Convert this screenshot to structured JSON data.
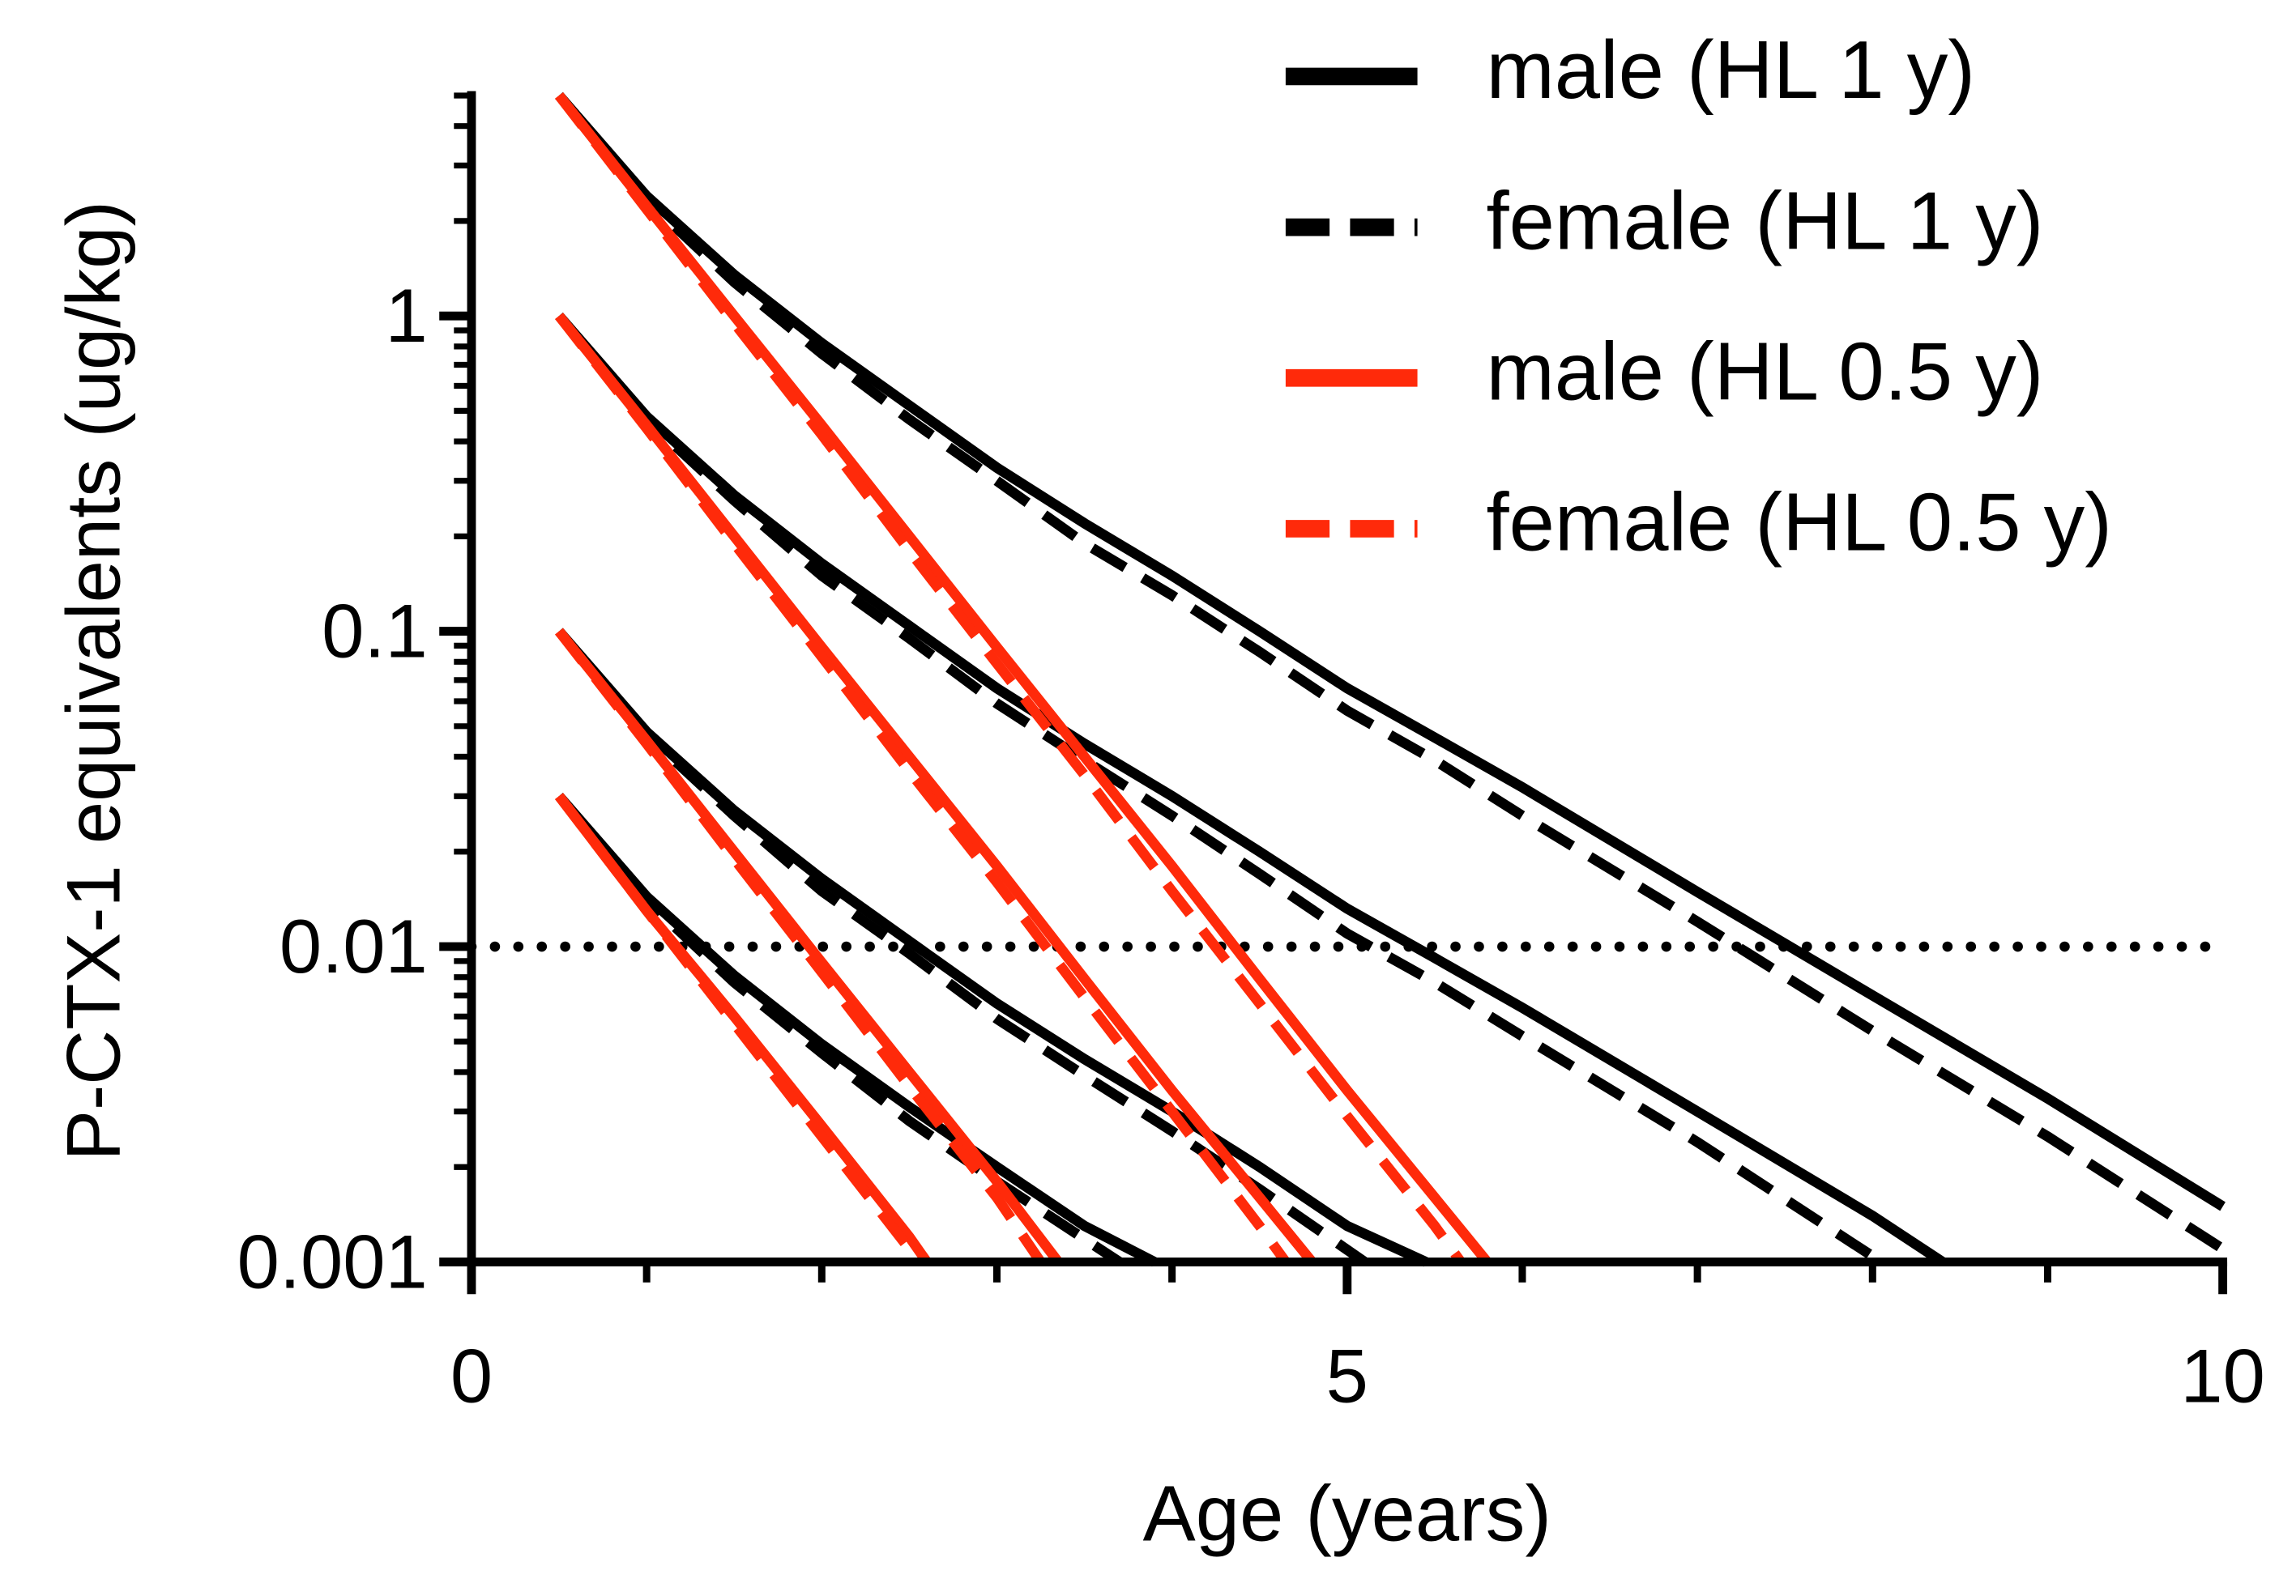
{
  "chart_data": {
    "type": "line",
    "xlabel": "Age (years)",
    "ylabel": "P-CTX-1 equivalents (ug/kg)",
    "xlim": [
      0,
      10
    ],
    "xticks": [
      0,
      5,
      10
    ],
    "xminorticks": [
      1,
      2,
      3,
      4,
      6,
      7,
      8,
      9
    ],
    "ylim": [
      0.001,
      5
    ],
    "yticks": [
      0.001,
      0.01,
      0.1,
      1
    ],
    "yminorticks": [
      0.002,
      0.003,
      0.004,
      0.005,
      0.006,
      0.007,
      0.008,
      0.009,
      0.02,
      0.03,
      0.04,
      0.05,
      0.06,
      0.07,
      0.08,
      0.09,
      0.2,
      0.3,
      0.4,
      0.5,
      0.6,
      0.7,
      0.8,
      0.9,
      2,
      3,
      4,
      5
    ],
    "log_y": true,
    "hline": 0.01,
    "legend": "top-right",
    "series": [
      {
        "name": "male (HL 1 y)",
        "color": "#000000",
        "dashed": false,
        "curves": [
          {
            "x": [
              0.5,
              1,
              1.5,
              2,
              2.5,
              3,
              3.5,
              4,
              4.5,
              5,
              5.5,
              6,
              7,
              8,
              9,
              10
            ],
            "values": [
              5,
              2.4,
              1.35,
              0.82,
              0.52,
              0.33,
              0.22,
              0.15,
              0.1,
              0.066,
              0.046,
              0.032,
              0.0149,
              0.007,
              0.0033,
              0.0015
            ]
          },
          {
            "x": [
              0.5,
              1,
              1.5,
              2,
              2.5,
              3,
              3.5,
              4,
              4.5,
              5,
              5.5,
              6,
              7,
              8,
              8.4
            ],
            "values": [
              1,
              0.48,
              0.27,
              0.164,
              0.104,
              0.066,
              0.044,
              0.03,
              0.02,
              0.0132,
              0.0092,
              0.0064,
              0.003,
              0.0014,
              0.001
            ]
          },
          {
            "x": [
              0.5,
              1,
              1.5,
              2,
              2.5,
              3,
              3.5,
              4,
              4.5,
              5,
              5.45
            ],
            "values": [
              0.1,
              0.048,
              0.027,
              0.0164,
              0.0104,
              0.0066,
              0.0044,
              0.003,
              0.002,
              0.0013,
              0.001
            ]
          },
          {
            "x": [
              0.5,
              1,
              1.5,
              2,
              2.5,
              3,
              3.5,
              3.9
            ],
            "values": [
              0.03,
              0.0144,
              0.0081,
              0.0049,
              0.0031,
              0.002,
              0.0013,
              0.001
            ]
          }
        ]
      },
      {
        "name": "female (HL 1 y)",
        "color": "#000000",
        "dashed": true,
        "curves": [
          {
            "x": [
              0.5,
              1,
              1.5,
              2,
              2.5,
              3,
              3.5,
              4,
              4.5,
              5,
              5.5,
              6,
              7,
              8,
              9,
              10
            ],
            "values": [
              5,
              2.33,
              1.28,
              0.76,
              0.47,
              0.3,
              0.19,
              0.13,
              0.086,
              0.056,
              0.039,
              0.026,
              0.012,
              0.0054,
              0.0025,
              0.0011
            ]
          },
          {
            "x": [
              0.5,
              1,
              1.5,
              2,
              2.5,
              3,
              3.5,
              4,
              4.5,
              5,
              5.5,
              6,
              7,
              8.05
            ],
            "values": [
              1,
              0.47,
              0.26,
              0.15,
              0.095,
              0.059,
              0.039,
              0.026,
              0.017,
              0.011,
              0.0077,
              0.0052,
              0.0024,
              0.001
            ]
          },
          {
            "x": [
              0.5,
              1,
              1.5,
              2,
              2.5,
              3,
              3.5,
              4,
              4.5,
              5.1
            ],
            "values": [
              0.1,
              0.047,
              0.026,
              0.015,
              0.0095,
              0.0059,
              0.0039,
              0.0026,
              0.0017,
              0.001
            ]
          },
          {
            "x": [
              0.5,
              1,
              1.5,
              2,
              2.5,
              3,
              3.7
            ],
            "values": [
              0.03,
              0.014,
              0.0077,
              0.0046,
              0.0028,
              0.0018,
              0.001
            ]
          }
        ]
      },
      {
        "name": "male (HL 0.5 y)",
        "color": "#ff2a0a",
        "dashed": false,
        "curves": [
          {
            "x": [
              0.5,
              1,
              1.5,
              2,
              2.5,
              3,
              3.5,
              4,
              4.5,
              5,
              5.5,
              5.8
            ],
            "values": [
              5,
              2.23,
              1,
              0.45,
              0.2,
              0.089,
              0.04,
              0.018,
              0.0079,
              0.0035,
              0.0016,
              0.001
            ]
          },
          {
            "x": [
              0.5,
              1,
              1.5,
              2,
              2.5,
              3,
              3.5,
              4,
              4.5,
              4.8
            ],
            "values": [
              1,
              0.45,
              0.2,
              0.089,
              0.04,
              0.018,
              0.0079,
              0.0035,
              0.0016,
              0.001
            ]
          },
          {
            "x": [
              0.5,
              1,
              1.5,
              2,
              2.5,
              3,
              3.35
            ],
            "values": [
              0.1,
              0.045,
              0.02,
              0.0089,
              0.004,
              0.0018,
              0.001
            ]
          },
          {
            "x": [
              0.5,
              1,
              1.5,
              2,
              2.5,
              2.6
            ],
            "values": [
              0.03,
              0.013,
              0.006,
              0.0027,
              0.0012,
              0.001
            ]
          }
        ]
      },
      {
        "name": "female (HL 0.5 y)",
        "color": "#ff2a0a",
        "dashed": true,
        "curves": [
          {
            "x": [
              0.5,
              1,
              1.5,
              2,
              2.5,
              3,
              3.5,
              4,
              4.5,
              5,
              5.5,
              5.65
            ],
            "values": [
              5,
              2.18,
              0.95,
              0.42,
              0.18,
              0.079,
              0.035,
              0.015,
              0.0066,
              0.0029,
              0.0013,
              0.001
            ]
          },
          {
            "x": [
              0.5,
              1,
              1.5,
              2,
              2.5,
              3,
              3.5,
              4,
              4.5,
              4.65
            ],
            "values": [
              1,
              0.44,
              0.19,
              0.083,
              0.036,
              0.016,
              0.0069,
              0.003,
              0.0013,
              0.001
            ]
          },
          {
            "x": [
              0.5,
              1,
              1.5,
              2,
              2.5,
              3,
              3.25
            ],
            "values": [
              0.1,
              0.044,
              0.019,
              0.0083,
              0.0036,
              0.0016,
              0.001
            ]
          },
          {
            "x": [
              0.5,
              1,
              1.5,
              2,
              2.5,
              2.55
            ],
            "values": [
              0.03,
              0.013,
              0.0057,
              0.0025,
              0.0011,
              0.001
            ]
          }
        ]
      }
    ]
  }
}
